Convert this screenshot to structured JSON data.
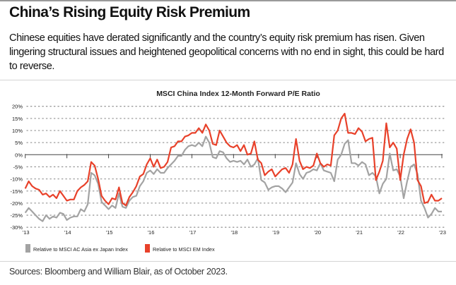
{
  "header": {
    "title": "China’s Rising Equity Risk Premium",
    "subtitle": "Chinese equities have derated significantly and the country’s equity risk premium has risen. Given lingering structural issues and heightened geopolitical concerns with no end in sight, this could be hard to reverse."
  },
  "footer": {
    "sources": "Sources: Bloomberg and William Blair, as of October 2023."
  },
  "chart_data": {
    "type": "line",
    "title": "MSCI China Index 12-Month Forward P/E Ratio",
    "xlabel": "",
    "ylabel": "",
    "x_start": "2013-01",
    "x_frequency": "monthly",
    "x_ticks": [
      "'13",
      "'14",
      "'15",
      "'16",
      "'17",
      "'18",
      "'19",
      "'20",
      "'21",
      "'22",
      "'23"
    ],
    "y_ticks": [
      "20%",
      "15%",
      "10%",
      "5%",
      "0%",
      "-5%",
      "-10%",
      "-15%",
      "-20%",
      "-25%",
      "-30%"
    ],
    "ylim": [
      -30,
      20
    ],
    "grid": "horizontal dotted",
    "legend": "bottom-left",
    "series": [
      {
        "name": "Relative to MSCI AC Asia ex Japan Index",
        "color": "#a3a3a3",
        "values": [
          -24,
          -22,
          -23.5,
          -25,
          -26.5,
          -27.5,
          -25,
          -26.5,
          -25.5,
          -26,
          -24,
          -24.5,
          -27,
          -26,
          -25.5,
          -25.5,
          -22.5,
          -23.5,
          -20.5,
          -7.5,
          -8.5,
          -12,
          -19.5,
          -21,
          -22.5,
          -21,
          -22,
          -16,
          -21.5,
          -22,
          -19,
          -17.5,
          -17,
          -13,
          -11,
          -7.5,
          -6.5,
          -8,
          -6,
          -7.5,
          -7.5,
          -5.5,
          -4,
          -2.5,
          -0.5,
          -0.5,
          2,
          3.5,
          4,
          3.5,
          5,
          3.5,
          7.5,
          5,
          -1,
          -1.5,
          1.5,
          1,
          -1.5,
          -3,
          -2.5,
          -3,
          -2.5,
          -4,
          -2,
          -5,
          -4,
          -1.5,
          -10.5,
          -11.5,
          -14.5,
          -13.5,
          -13,
          -13,
          -14,
          -15.5,
          -13.5,
          -11.5,
          -3.5,
          -8,
          -10,
          -7.5,
          -7,
          -6,
          -6.5,
          -3.5,
          -6.5,
          -7,
          -7.5,
          -11,
          -2,
          0,
          4.5,
          6,
          -3.5,
          -3.5,
          -4.5,
          -3,
          -4,
          -8.5,
          -7.5,
          -9,
          -16,
          -12,
          -10,
          0.5,
          -6.5,
          -6,
          -9,
          -18,
          -11,
          -5,
          -4,
          -8,
          -19,
          -22,
          -26,
          -24.5,
          -22,
          -23.5,
          -23.5
        ]
      },
      {
        "name": "Relative to MSCI EM Index",
        "color": "#e8412a",
        "values": [
          -14,
          -11,
          -13,
          -14,
          -14.5,
          -16.5,
          -16,
          -17.5,
          -16.5,
          -18,
          -15,
          -17,
          -19,
          -18.5,
          -18.5,
          -15,
          -13.5,
          -12.5,
          -11,
          -3,
          -4.5,
          -10,
          -17,
          -19,
          -20.5,
          -18,
          -18.5,
          -13.5,
          -20,
          -21,
          -17.5,
          -15.5,
          -13,
          -9,
          -8,
          -4,
          -1.5,
          -5,
          -2,
          -5.5,
          -5,
          -3,
          3,
          3.5,
          5.5,
          5.5,
          7.5,
          8,
          9,
          9,
          11,
          9,
          12.5,
          10,
          4.5,
          4,
          10,
          7.5,
          5,
          3.5,
          3,
          4,
          1.5,
          4,
          0,
          0.5,
          5.5,
          -2,
          -3.5,
          -8.5,
          -7,
          -6,
          -9,
          -7.5,
          -6,
          -5.5,
          -7.5,
          -4,
          6.5,
          -2.5,
          -6,
          -5,
          -5.5,
          -4.5,
          0.5,
          -3.5,
          -5,
          -4,
          -4.5,
          8,
          10,
          15,
          17,
          9,
          9,
          8.5,
          11,
          9.5,
          5.5,
          6.5,
          7,
          -10.5,
          -7,
          -2.5,
          13,
          3,
          5,
          2.5,
          -10.5,
          0,
          6.5,
          10.5,
          5,
          -10.5,
          -13,
          -20,
          -19.5,
          -16.5,
          -19,
          -19,
          -18
        ]
      }
    ]
  }
}
